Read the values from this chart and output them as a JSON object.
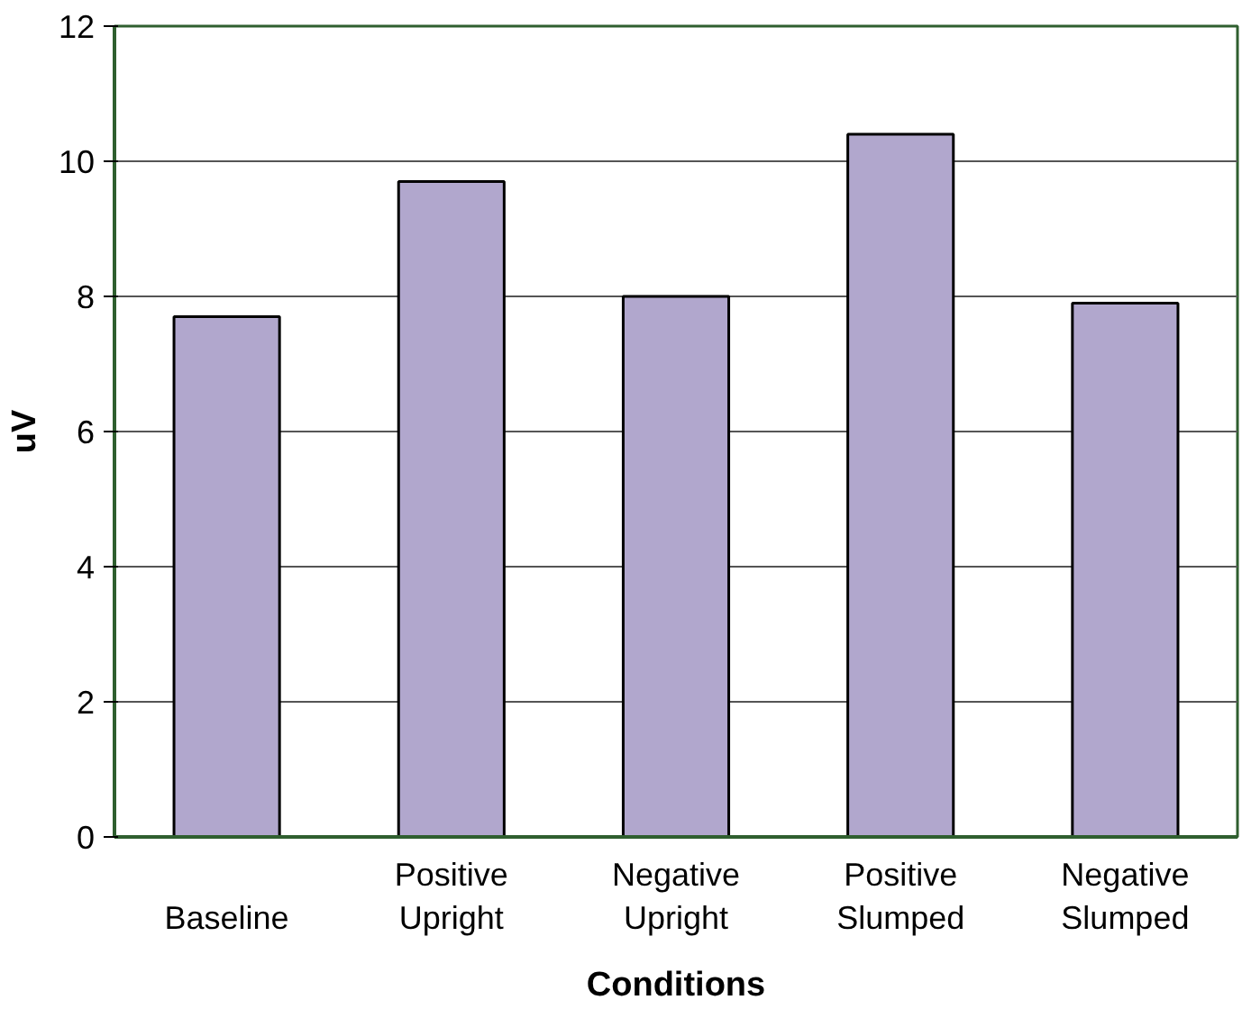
{
  "chart_data": {
    "type": "bar",
    "xlabel": "Conditions",
    "ylabel": "uV",
    "categories": [
      "Baseline",
      "Positive Upright",
      "Negative Upright",
      "Positive Slumped",
      "Negative Slumped"
    ],
    "values": [
      7.7,
      9.7,
      8.0,
      10.4,
      7.9
    ],
    "color": "#b1a7cd",
    "ylim": [
      0,
      12
    ],
    "yticks": [
      0,
      2,
      4,
      6,
      8,
      10,
      12
    ],
    "grid": "y"
  }
}
